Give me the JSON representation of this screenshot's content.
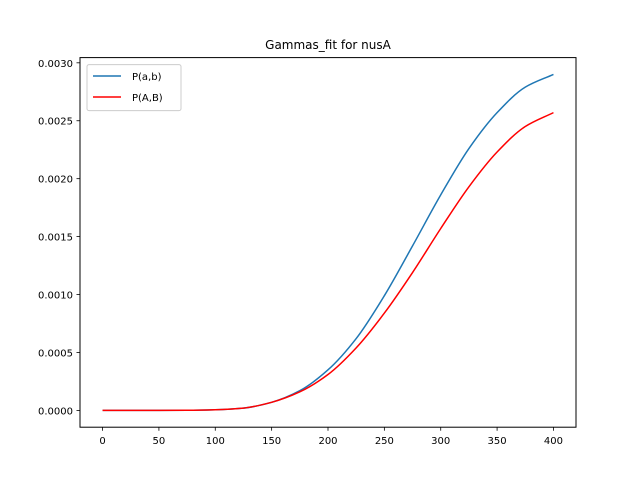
{
  "chart_data": {
    "type": "line",
    "title": "Gammas_fit for nusA",
    "xlabel": "",
    "ylabel": "",
    "xlim": [
      -20,
      420
    ],
    "ylim": [
      -0.000145,
      0.003045
    ],
    "xticks": [
      0,
      50,
      100,
      150,
      200,
      250,
      300,
      350,
      400
    ],
    "xtick_labels": [
      "0",
      "50",
      "100",
      "150",
      "200",
      "250",
      "300",
      "350",
      "400"
    ],
    "yticks": [
      0.0,
      0.0005,
      0.001,
      0.0015,
      0.002,
      0.0025,
      0.003
    ],
    "ytick_labels": [
      "0.0000",
      "0.0005",
      "0.0010",
      "0.0015",
      "0.0020",
      "0.0025",
      "0.0030"
    ],
    "grid": false,
    "legend_position": "upper-left",
    "x": [
      0,
      25,
      50,
      75,
      100,
      125,
      150,
      175,
      200,
      225,
      250,
      275,
      300,
      325,
      350,
      375,
      400
    ],
    "series": [
      {
        "name": "P(a,b)",
        "color": "#1f77b4",
        "values": [
          0.0,
          0.0,
          0.0,
          1e-06,
          6e-06,
          2e-05,
          7e-05,
          0.00017,
          0.00035,
          0.00062,
          0.00099,
          0.00142,
          0.00186,
          0.00226,
          0.00257,
          0.00279,
          0.0029
        ]
      },
      {
        "name": "P(A,B)",
        "color": "#ff0000",
        "values": [
          0.0,
          0.0,
          0.0,
          1e-06,
          6e-06,
          2e-05,
          7e-05,
          0.00016,
          0.00031,
          0.00054,
          0.00084,
          0.00119,
          0.00157,
          0.00193,
          0.00223,
          0.00245,
          0.00257
        ]
      }
    ]
  }
}
